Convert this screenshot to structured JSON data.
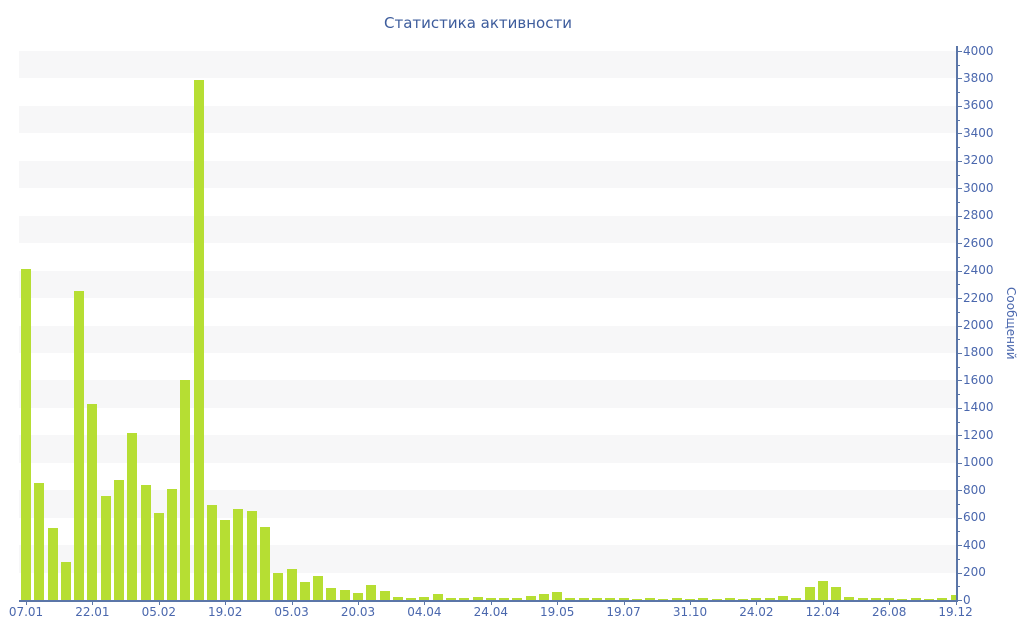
{
  "title": "Статистика активности",
  "chart_data": {
    "type": "bar",
    "title": "Статистика активности",
    "ylabel": "Сообщений",
    "xlabel": "",
    "ylim": [
      0,
      4000
    ],
    "y_tick_step": 200,
    "y_minor_tick_step": 100,
    "grid": "alternating-horizontal-bands",
    "legend": "none",
    "n_bars": 71,
    "values": [
      2410,
      855,
      525,
      280,
      2250,
      1430,
      755,
      875,
      1215,
      840,
      635,
      810,
      1605,
      3790,
      690,
      585,
      665,
      645,
      530,
      200,
      227,
      130,
      173,
      86,
      74,
      52,
      111,
      69,
      25,
      16,
      21,
      42,
      12,
      18,
      22,
      12,
      18,
      15,
      26,
      46,
      55,
      12,
      15,
      17,
      15,
      18,
      10,
      12,
      10,
      12,
      10,
      13,
      10,
      13,
      10,
      13,
      16,
      29,
      14,
      93,
      141,
      98,
      21,
      13,
      13,
      12,
      10,
      12,
      10,
      14,
      34
    ],
    "x_tick_labels": [
      {
        "i": 0,
        "label": "07.01"
      },
      {
        "i": 5,
        "label": "22.01"
      },
      {
        "i": 10,
        "label": "05.02"
      },
      {
        "i": 15,
        "label": "19.02"
      },
      {
        "i": 20,
        "label": "05.03"
      },
      {
        "i": 25,
        "label": "20.03"
      },
      {
        "i": 30,
        "label": "04.04"
      },
      {
        "i": 35,
        "label": "24.04"
      },
      {
        "i": 40,
        "label": "19.05"
      },
      {
        "i": 45,
        "label": "19.07"
      },
      {
        "i": 50,
        "label": "31.10"
      },
      {
        "i": 55,
        "label": "24.02"
      },
      {
        "i": 60,
        "label": "12.04"
      },
      {
        "i": 65,
        "label": "26.08"
      },
      {
        "i": 70,
        "label": "19.12"
      }
    ],
    "colors": {
      "bar": "#b6de33",
      "band": "#f7f7f8",
      "axis": "#5b76a8",
      "tick_label": "#4a67ad",
      "title": "#3d5c9c"
    }
  }
}
